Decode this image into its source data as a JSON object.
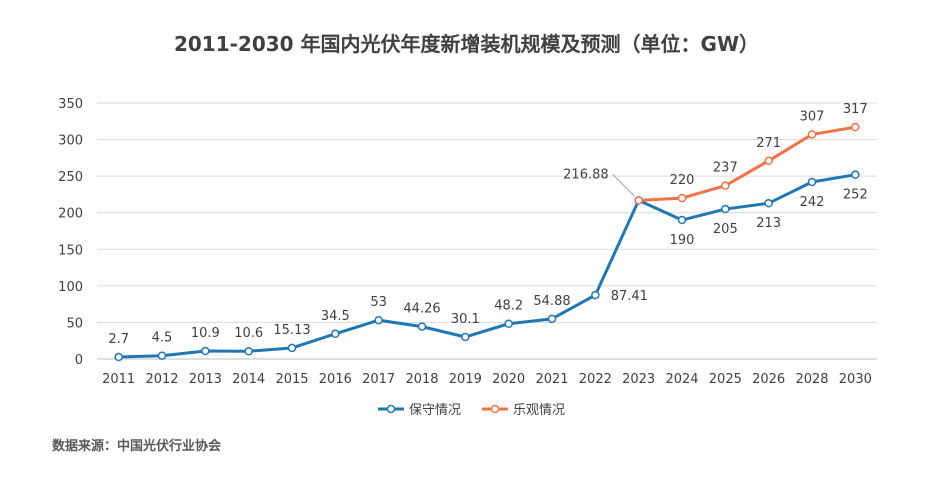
{
  "chart_data": {
    "type": "line",
    "title": "2011-2030 年国内光伏年度新增装机规模及预测（单位：GW）",
    "source": "数据来源：中国光伏行业协会",
    "categories": [
      "2011",
      "2012",
      "2013",
      "2014",
      "2015",
      "2016",
      "2017",
      "2018",
      "2019",
      "2020",
      "2021",
      "2022",
      "2023",
      "2024",
      "2025",
      "2026",
      "2028",
      "2030"
    ],
    "ylim": [
      0,
      350
    ],
    "yticks": [
      0,
      50,
      100,
      150,
      200,
      250,
      300,
      350
    ],
    "grid": true,
    "legend_position": "bottom",
    "series": [
      {
        "name": "保守情况",
        "color": "#1f77b4",
        "values": [
          2.7,
          4.5,
          10.9,
          10.6,
          15.13,
          34.5,
          53,
          44.26,
          30.1,
          48.2,
          54.88,
          87.41,
          216.88,
          190,
          205,
          213,
          242,
          252
        ],
        "labels": [
          "2.7",
          "4.5",
          "10.9",
          "10.6",
          "15.13",
          "34.5",
          "53",
          "44.26",
          "30.1",
          "48.2",
          "54.88",
          "87.41",
          "216.88",
          "190",
          "205",
          "213",
          "242",
          "252"
        ]
      },
      {
        "name": "乐观情况",
        "color": "#f07346",
        "values": [
          null,
          null,
          null,
          null,
          null,
          null,
          null,
          null,
          null,
          null,
          null,
          null,
          216.88,
          220,
          237,
          271,
          307,
          317
        ],
        "labels": [
          "",
          "",
          "",
          "",
          "",
          "",
          "",
          "",
          "",
          "",
          "",
          "",
          "",
          "220",
          "237",
          "271",
          "307",
          "317"
        ]
      }
    ]
  }
}
